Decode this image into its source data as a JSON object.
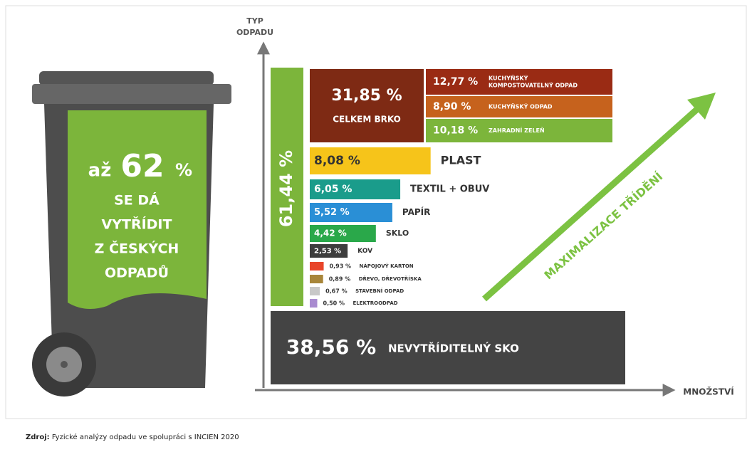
{
  "bin": {
    "prefix": "až",
    "number": "62",
    "unit": "%",
    "lines": [
      "SE DÁ",
      "VYTŘÍDIT",
      "Z ČESKÝCH",
      "ODPADŮ"
    ]
  },
  "axes": {
    "y_label": [
      "TYP",
      "ODPADU"
    ],
    "x_label": "MNOŽSTVÍ"
  },
  "sortable_total": "61,44 %",
  "brko": {
    "label": "31,85 %",
    "name": "CELKEM BRKO",
    "parts": [
      {
        "label": "12,77 %",
        "name": [
          "KUCHYŇSKÝ",
          "KOMPOSTOVATELNÝ ODPAD"
        ],
        "color": "#9a2b14"
      },
      {
        "label": "8,90 %",
        "name": [
          "KUCHYŇSKÝ ODPAD"
        ],
        "color": "#c6621d"
      },
      {
        "label": "10,18 %",
        "name": [
          "ZAHRADNÍ ZELEŇ"
        ],
        "color": "#7cb53b"
      }
    ]
  },
  "items": [
    {
      "value": 8.08,
      "label": "8,08 %",
      "name": "PLAST",
      "color": "#f6c41a"
    },
    {
      "value": 6.05,
      "label": "6,05 %",
      "name": "TEXTIL + OBUV",
      "color": "#1a9c8b"
    },
    {
      "value": 5.52,
      "label": "5,52 %",
      "name": "PAPÍR",
      "color": "#2a8fd6"
    },
    {
      "value": 4.42,
      "label": "4,42 %",
      "name": "SKLO",
      "color": "#2aa84a"
    },
    {
      "value": 2.53,
      "label": "2,53 %",
      "name": "KOV",
      "color": "#3d3d3d"
    },
    {
      "value": 0.93,
      "label": "0,93 %",
      "name": "NÁPOJOVÝ KARTON",
      "color": "#e8452a"
    },
    {
      "value": 0.89,
      "label": "0,89 %",
      "name": "DŘEVO, DŘEVOTŘÍSKA",
      "color": "#a8863a"
    },
    {
      "value": 0.67,
      "label": "0,67 %",
      "name": "STAVEBNÍ ODPAD",
      "color": "#c8c8c8"
    },
    {
      "value": 0.5,
      "label": "0,50 %",
      "name": "ELEKTROODPAD",
      "color": "#a98bd0"
    }
  ],
  "unsortable": {
    "label": "38,56 %",
    "name": "NEVYTŘÍDITELNÝ SKO"
  },
  "arrow_label": "MAXIMALIZACE TŘÍDĚNÍ",
  "source": {
    "prefix": "Zdroj:",
    "text": " Fyzické analýzy odpadu ve spolupráci s INCIEN 2020"
  }
}
